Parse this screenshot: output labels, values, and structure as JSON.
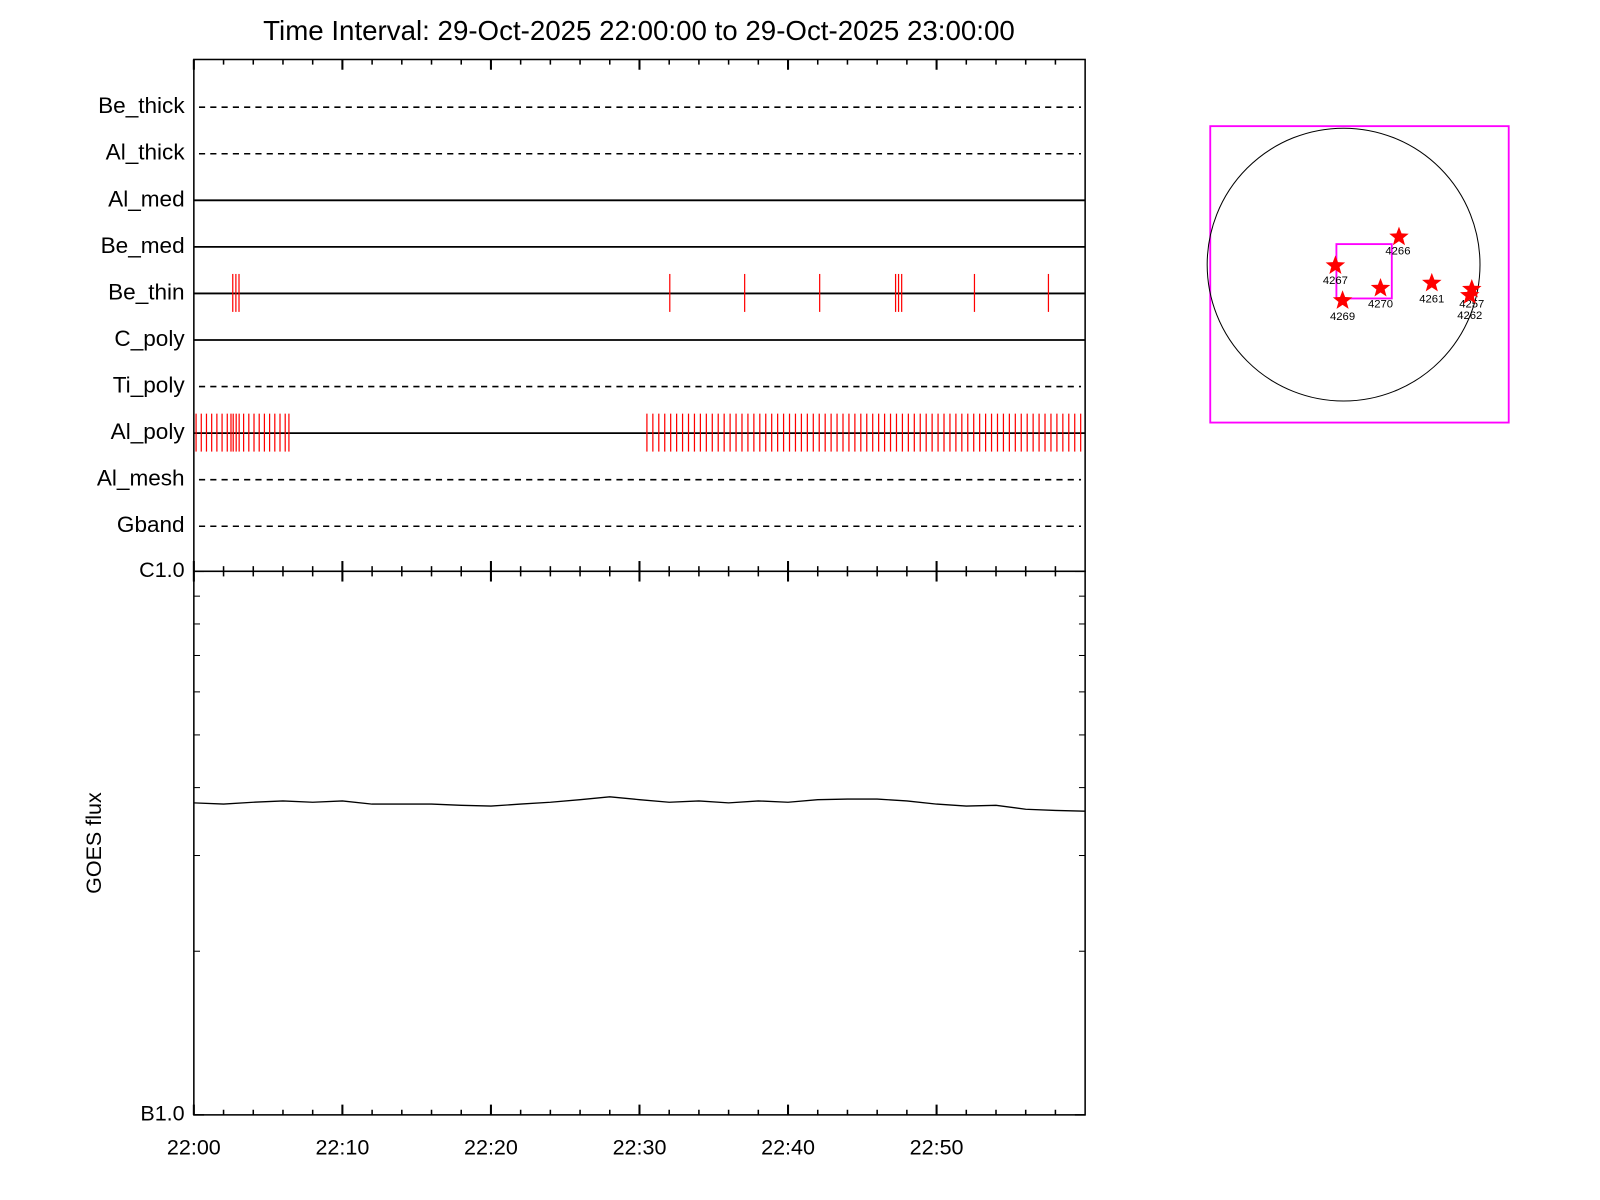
{
  "chart_data": [
    {
      "type": "filters",
      "title": "Time Interval: 29-Oct-2025 22:00:00 to 29-Oct-2025 23:00:00",
      "xlim": [
        0,
        60
      ],
      "xticks": [
        0,
        10,
        20,
        30,
        40,
        50
      ],
      "xminorticks": [
        2,
        4,
        6,
        8,
        12,
        14,
        16,
        18,
        22,
        24,
        26,
        28,
        32,
        34,
        36,
        38,
        42,
        44,
        46,
        48,
        52,
        54,
        56,
        58
      ],
      "exposure_color": "#ff0000",
      "filters": [
        {
          "name": "Be_thick",
          "style": "dashed",
          "exposures": []
        },
        {
          "name": "Al_thick",
          "style": "dashed",
          "exposures": []
        },
        {
          "name": "Al_med",
          "style": "solid",
          "exposures": []
        },
        {
          "name": "Be_med",
          "style": "solid",
          "exposures": []
        },
        {
          "name": "Be_thin",
          "style": "solid",
          "exposures": [
            2.62,
            2.83,
            3.04,
            32.04,
            37.08,
            42.13,
            47.24,
            47.44,
            47.65,
            52.55,
            57.53
          ]
        },
        {
          "name": "C_poly",
          "style": "solid",
          "exposures": []
        },
        {
          "name": "Ti_poly",
          "style": "dashed",
          "exposures": []
        },
        {
          "name": "Al_poly",
          "style": "solid",
          "exposures": [
            0.15,
            0.5,
            0.85,
            1.2,
            1.55,
            1.9,
            2.25,
            2.5,
            2.65,
            2.85,
            3.05,
            3.35,
            3.7,
            4.05,
            4.4,
            4.75,
            5.1,
            5.45,
            5.8,
            6.15,
            6.4,
            30.5,
            30.9,
            31.3,
            31.7,
            32.1,
            32.5,
            32.9,
            33.3,
            33.7,
            34.1,
            34.5,
            34.9,
            35.3,
            35.7,
            36.1,
            36.5,
            36.9,
            37.3,
            37.7,
            38.1,
            38.5,
            38.9,
            39.3,
            39.7,
            40.1,
            40.5,
            40.9,
            41.3,
            41.7,
            42.1,
            42.5,
            42.9,
            43.3,
            43.7,
            44.1,
            44.5,
            44.9,
            45.3,
            45.7,
            46.1,
            46.5,
            46.9,
            47.3,
            47.7,
            48.1,
            48.5,
            48.9,
            49.3,
            49.7,
            50.1,
            50.5,
            50.9,
            51.3,
            51.7,
            52.1,
            52.5,
            52.9,
            53.3,
            53.7,
            54.1,
            54.5,
            54.9,
            55.3,
            55.7,
            56.1,
            56.5,
            56.9,
            57.3,
            57.7,
            58.1,
            58.5,
            58.9,
            59.3,
            59.7
          ]
        },
        {
          "name": "Al_mesh",
          "style": "dashed",
          "exposures": []
        },
        {
          "name": "Gband",
          "style": "dashed",
          "exposures": []
        }
      ]
    },
    {
      "type": "line",
      "ylabel": "GOES flux",
      "log_scale": true,
      "color": "#000000",
      "x": [
        0,
        2,
        4,
        6,
        8,
        10,
        12,
        14,
        16,
        18,
        20,
        22,
        24,
        26,
        28,
        30,
        32,
        34,
        36,
        38,
        40,
        42,
        44,
        46,
        48,
        50,
        52,
        54,
        56,
        58,
        60
      ],
      "values": [
        3.75e-07,
        3.73e-07,
        3.76e-07,
        3.78e-07,
        3.76e-07,
        3.78e-07,
        3.73e-07,
        3.73e-07,
        3.73e-07,
        3.71e-07,
        3.7e-07,
        3.73e-07,
        3.76e-07,
        3.8e-07,
        3.846e-07,
        3.8e-07,
        3.76e-07,
        3.78e-07,
        3.75e-07,
        3.78e-07,
        3.76e-07,
        3.8e-07,
        3.81e-07,
        3.81e-07,
        3.78e-07,
        3.73e-07,
        3.7e-07,
        3.71e-07,
        3.65e-07,
        3.63e-07,
        3.62e-07
      ],
      "xlim": [
        0,
        60
      ],
      "xticks": [
        {
          "value": 0,
          "label": "22:00"
        },
        {
          "value": 10,
          "label": "22:10"
        },
        {
          "value": 20,
          "label": "22:20"
        },
        {
          "value": 30,
          "label": "22:30"
        },
        {
          "value": 40,
          "label": "22:40"
        },
        {
          "value": 50,
          "label": "22:50"
        }
      ],
      "xminorticks": [
        2,
        4,
        6,
        8,
        12,
        14,
        16,
        18,
        22,
        24,
        26,
        28,
        32,
        34,
        36,
        38,
        42,
        44,
        46,
        48,
        52,
        54,
        56,
        58
      ],
      "ylim": [
        1e-07,
        1e-06
      ],
      "yticks": [
        {
          "value": 1e-07,
          "label": "B1.0"
        },
        {
          "value": 1e-06,
          "label": "C1.0"
        }
      ],
      "yminorticks": [
        2e-07,
        3e-07,
        4e-07,
        5e-07,
        6e-07,
        7e-07,
        8e-07,
        9e-07
      ]
    },
    {
      "type": "map",
      "box_color": "#ff00ff",
      "marker_color": "#ff0000",
      "regions": [
        "4266",
        "4267",
        "4269",
        "4270",
        "4261",
        "4257",
        "4262"
      ]
    }
  ]
}
